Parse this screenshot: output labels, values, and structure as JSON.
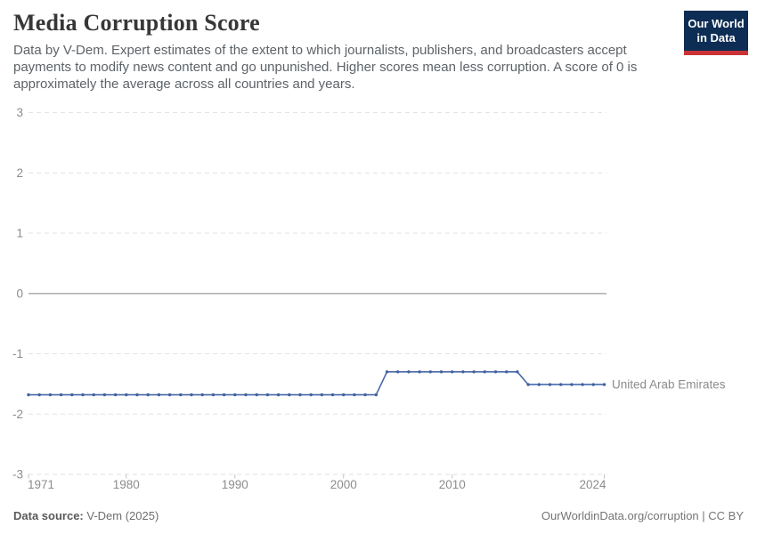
{
  "header": {
    "title": "Media Corruption Score",
    "subtitle": "Data by V-Dem. Expert estimates of the extent to which journalists, publishers, and broadcasters accept\npayments to modify news content and go unpunished. Higher scores mean less corruption. A score of 0 is\napproximately the average across all countries and years.",
    "logo": {
      "line1": "Our World",
      "line2": "in Data",
      "bg_color": "#0d2d54",
      "accent_color": "#cb3437"
    }
  },
  "chart_data": {
    "type": "line",
    "title": "Media Corruption Score",
    "xlabel": "",
    "ylabel": "",
    "xlim": [
      1971,
      2024
    ],
    "ylim": [
      -3,
      3
    ],
    "x_ticks": [
      1971,
      1980,
      1990,
      2000,
      2010,
      2024
    ],
    "y_ticks": [
      3,
      2,
      1,
      0,
      -1,
      -2,
      -3
    ],
    "grid": "horizontal-dashed",
    "zero_line": true,
    "legend_position": "end-of-line-label",
    "series": [
      {
        "name": "United Arab Emirates",
        "color": "#4a69a8",
        "marker_color": "#3f62a0",
        "x": [
          1971,
          1972,
          1973,
          1974,
          1975,
          1976,
          1977,
          1978,
          1979,
          1980,
          1981,
          1982,
          1983,
          1984,
          1985,
          1986,
          1987,
          1988,
          1989,
          1990,
          1991,
          1992,
          1993,
          1994,
          1995,
          1996,
          1997,
          1998,
          1999,
          2000,
          2001,
          2002,
          2003,
          2004,
          2005,
          2006,
          2007,
          2008,
          2009,
          2010,
          2011,
          2012,
          2013,
          2014,
          2015,
          2016,
          2017,
          2018,
          2019,
          2020,
          2021,
          2022,
          2023,
          2024
        ],
        "values": [
          -1.68,
          -1.68,
          -1.68,
          -1.68,
          -1.68,
          -1.68,
          -1.68,
          -1.68,
          -1.68,
          -1.68,
          -1.68,
          -1.68,
          -1.68,
          -1.68,
          -1.68,
          -1.68,
          -1.68,
          -1.68,
          -1.68,
          -1.68,
          -1.68,
          -1.68,
          -1.68,
          -1.68,
          -1.68,
          -1.68,
          -1.68,
          -1.68,
          -1.68,
          -1.68,
          -1.68,
          -1.68,
          -1.68,
          -1.3,
          -1.3,
          -1.3,
          -1.3,
          -1.3,
          -1.3,
          -1.3,
          -1.3,
          -1.3,
          -1.3,
          -1.3,
          -1.3,
          -1.3,
          -1.51,
          -1.51,
          -1.51,
          -1.51,
          -1.51,
          -1.51,
          -1.51,
          -1.51
        ]
      }
    ]
  },
  "footer": {
    "source_label": "Data source:",
    "source_value": "V-Dem (2025)",
    "attribution": "OurWorldinData.org/corruption | CC BY"
  }
}
